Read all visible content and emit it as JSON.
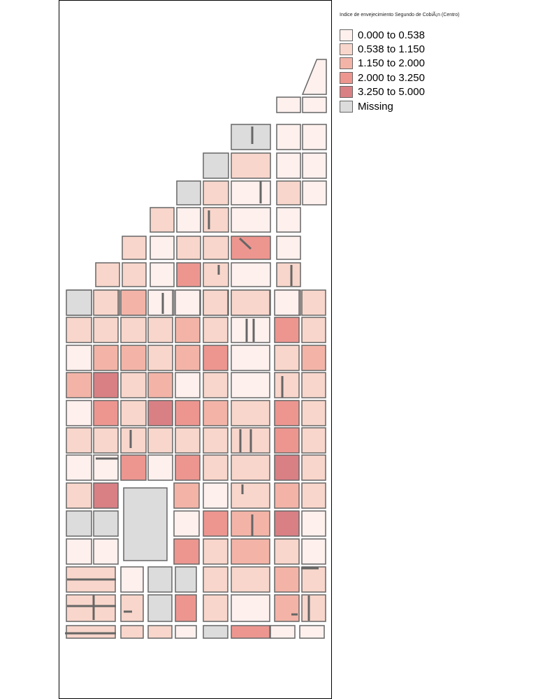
{
  "legend": {
    "title": "Indice de envejecimiento Segundo de CobiÃ¡n (Centro)",
    "classes": [
      {
        "label": "0.000 to 0.538",
        "color": "#fdf0ed"
      },
      {
        "label": "0.538 to 1.150",
        "color": "#f8d6cb"
      },
      {
        "label": "1.150 to 2.000",
        "color": "#f3b4a7"
      },
      {
        "label": "2.000 to 3.250",
        "color": "#ed9690"
      },
      {
        "label": "3.250 to 5.000",
        "color": "#d98085"
      },
      {
        "label": "Missing",
        "color": "#dcdcdc"
      }
    ]
  },
  "block_style": {
    "stroke": "#666666"
  },
  "map_blocks": {
    "rows": [
      {
        "classes": [
          0
        ]
      },
      {
        "classes": [
          0,
          0
        ]
      },
      {
        "classes": [
          5,
          0,
          0
        ]
      },
      {
        "classes": [
          5,
          1,
          0,
          0
        ]
      },
      {
        "classes": [
          5,
          1,
          0,
          1,
          0
        ]
      },
      {
        "classes": [
          1,
          0,
          1,
          0,
          0
        ]
      },
      {
        "classes": [
          1,
          0,
          1,
          1,
          3,
          0
        ]
      },
      {
        "classes": [
          1,
          1,
          0,
          3,
          1,
          0,
          1
        ]
      },
      {
        "classes": [
          1,
          1,
          0,
          0,
          1,
          1,
          0,
          1
        ]
      },
      {
        "classes": [
          5,
          1,
          2,
          0,
          0,
          1,
          1,
          0,
          1
        ]
      },
      {
        "classes": [
          1,
          1,
          1,
          1,
          2,
          1,
          0,
          3,
          1
        ]
      },
      {
        "classes": [
          0,
          2,
          2,
          1,
          2,
          3,
          0,
          1,
          2
        ]
      },
      {
        "classes": [
          2,
          4,
          1,
          2,
          0,
          1,
          0,
          1,
          1
        ]
      },
      {
        "classes": [
          0,
          3,
          1,
          4,
          3,
          2,
          1,
          3,
          1
        ]
      },
      {
        "classes": [
          1,
          1,
          1,
          1,
          1,
          1,
          1,
          3,
          1
        ]
      },
      {
        "classes": [
          0,
          0,
          3,
          0,
          3,
          1,
          1,
          4,
          1
        ]
      },
      {
        "classes": [
          1,
          4,
          2,
          0,
          1,
          2,
          1
        ]
      },
      {
        "classes": [
          5,
          5,
          0,
          3,
          2,
          4,
          0
        ]
      },
      {
        "classes": [
          0,
          0,
          3,
          1,
          2,
          1,
          0
        ]
      },
      {
        "classes": [
          1,
          0,
          5,
          5,
          1,
          1,
          2,
          1
        ]
      },
      {
        "classes": [
          1,
          1,
          5,
          3,
          1,
          0,
          2,
          1
        ]
      },
      {
        "classes": [
          1,
          1,
          1,
          0,
          5,
          3,
          0,
          0
        ]
      }
    ],
    "large_block_class": 5
  }
}
